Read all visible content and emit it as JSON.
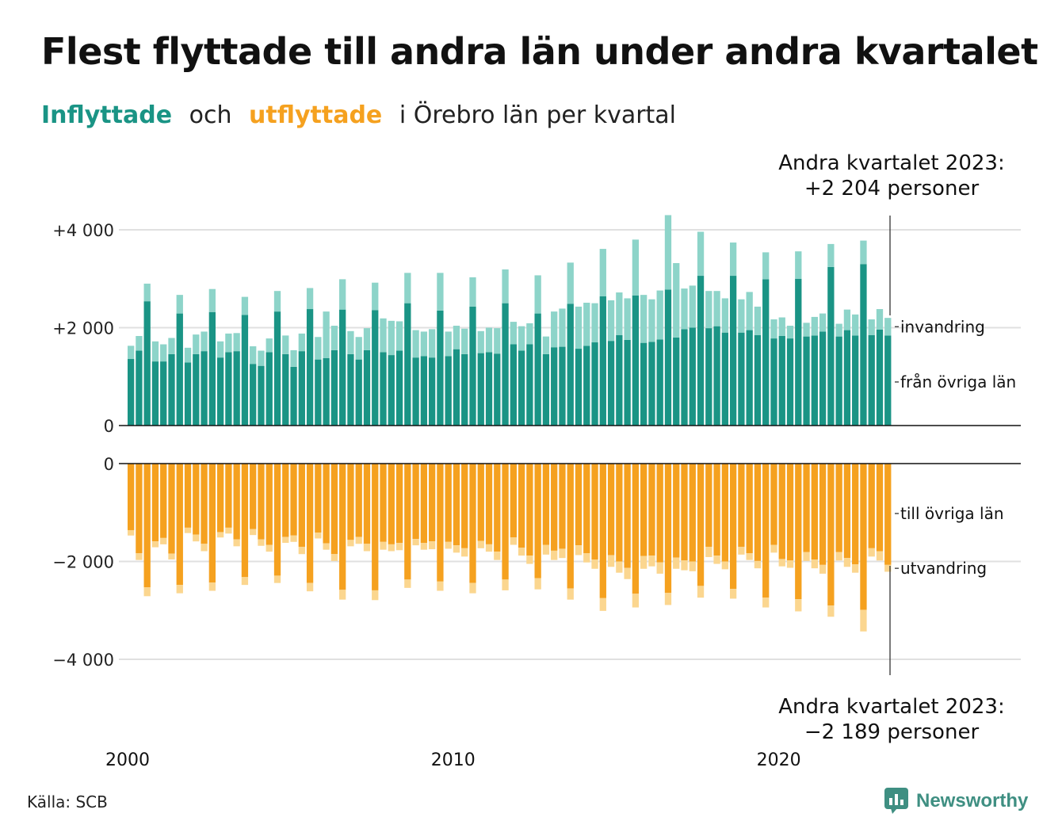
{
  "title": "Flest flyttade till andra län under andra kvartalet",
  "subtitle": {
    "part1": "Inflyttade",
    "part2": "och",
    "part3": "utflyttade",
    "part4": "i Örebro län per kvartal"
  },
  "annotation_top": {
    "line1": "Andra kvartalet 2023:",
    "line2": "+2 204 personer"
  },
  "annotation_bottom": {
    "line1": "Andra kvartalet 2023:",
    "line2": "−2 189 personer"
  },
  "source": "Källa: SCB",
  "logo": {
    "text": "Newsworthy",
    "icon": "bar-chart-speech-icon"
  },
  "colors": {
    "in_main": "#1a9485",
    "in_light": "#8dd4c9",
    "out_main": "#f5a11f",
    "out_light": "#fbd68f"
  },
  "chart_data": {
    "type": "bar",
    "x_start_year": 2000,
    "x_ticks": [
      "2000",
      "2010",
      "2020"
    ],
    "top_panel": {
      "y_ticks": [
        {
          "value": 4000,
          "label": "+4 000"
        },
        {
          "value": 2000,
          "label": "+2 000"
        },
        {
          "value": 0,
          "label": "0"
        }
      ],
      "series": [
        {
          "name": "från övriga län",
          "values": [
            1360,
            1530,
            2540,
            1310,
            1310,
            1460,
            2290,
            1290,
            1460,
            1520,
            2320,
            1390,
            1500,
            1520,
            2260,
            1260,
            1220,
            1500,
            2330,
            1460,
            1200,
            1520,
            2380,
            1350,
            1380,
            1540,
            2370,
            1460,
            1350,
            1540,
            2360,
            1500,
            1440,
            1530,
            2500,
            1390,
            1420,
            1390,
            2350,
            1420,
            1560,
            1460,
            2430,
            1480,
            1500,
            1470,
            2500,
            1660,
            1530,
            1660,
            2290,
            1460,
            1600,
            1610,
            2490,
            1570,
            1630,
            1700,
            2640,
            1730,
            1850,
            1750,
            2660,
            1690,
            1710,
            1760,
            2780,
            1800,
            1970,
            2000,
            3060,
            1990,
            2030,
            1900,
            3060,
            1900,
            1950,
            1850,
            2990,
            1780,
            1830,
            1780,
            3000,
            1820,
            1840,
            1920,
            3240,
            1820,
            1950,
            1840,
            3300,
            1850,
            1960,
            1840
          ]
        },
        {
          "name": "invandring",
          "values": [
            270,
            300,
            360,
            410,
            350,
            330,
            380,
            300,
            400,
            400,
            470,
            330,
            380,
            370,
            370,
            360,
            310,
            280,
            420,
            380,
            340,
            360,
            430,
            460,
            950,
            500,
            620,
            470,
            460,
            450,
            560,
            690,
            700,
            600,
            620,
            560,
            500,
            580,
            770,
            500,
            480,
            520,
            600,
            450,
            500,
            520,
            690,
            460,
            500,
            430,
            780,
            360,
            730,
            780,
            840,
            860,
            880,
            800,
            970,
            830,
            870,
            850,
            1140,
            980,
            870,
            1000,
            1520,
            1520,
            830,
            860,
            900,
            760,
            720,
            700,
            680,
            680,
            780,
            580,
            550,
            390,
            380,
            260,
            560,
            280,
            380,
            370,
            470,
            260,
            420,
            430,
            480,
            320,
            420,
            360
          ]
        }
      ],
      "labels": [
        "invandring",
        "från övriga län"
      ],
      "ylim": [
        0,
        4400
      ]
    },
    "bottom_panel": {
      "y_ticks": [
        {
          "value": 0,
          "label": "0"
        },
        {
          "value": -2000,
          "label": "−2 000"
        },
        {
          "value": -4000,
          "label": "−4 000"
        }
      ],
      "series": [
        {
          "name": "till övriga län",
          "values": [
            -1360,
            -1830,
            -2530,
            -1590,
            -1520,
            -1840,
            -2480,
            -1310,
            -1450,
            -1640,
            -2430,
            -1400,
            -1310,
            -1550,
            -2320,
            -1340,
            -1550,
            -1660,
            -2290,
            -1500,
            -1470,
            -1700,
            -2440,
            -1410,
            -1630,
            -1850,
            -2580,
            -1560,
            -1500,
            -1640,
            -2590,
            -1600,
            -1650,
            -1620,
            -2370,
            -1540,
            -1620,
            -1590,
            -2410,
            -1600,
            -1670,
            -1730,
            -2440,
            -1580,
            -1650,
            -1800,
            -2370,
            -1510,
            -1720,
            -1880,
            -2340,
            -1660,
            -1780,
            -1740,
            -2550,
            -1670,
            -1830,
            -1960,
            -2750,
            -1870,
            -2000,
            -2130,
            -2660,
            -1890,
            -1880,
            -2020,
            -2640,
            -1920,
            -1980,
            -2000,
            -2500,
            -1700,
            -1880,
            -2000,
            -2560,
            -1700,
            -1830,
            -1990,
            -2740,
            -1660,
            -1950,
            -1980,
            -2770,
            -1810,
            -1960,
            -2070,
            -2900,
            -1810,
            -1930,
            -2060,
            -2990,
            -1730,
            -1790,
            -2070
          ]
        },
        {
          "name": "utvandring",
          "values": [
            -110,
            -140,
            -180,
            -120,
            -130,
            -120,
            -170,
            -110,
            -140,
            -150,
            -170,
            -110,
            -120,
            -140,
            -160,
            -120,
            -130,
            -140,
            -150,
            -120,
            -130,
            -150,
            -170,
            -120,
            -130,
            -140,
            -200,
            -130,
            -140,
            -150,
            -200,
            -160,
            -140,
            -150,
            -170,
            -130,
            -140,
            -160,
            -190,
            -140,
            -150,
            -170,
            -210,
            -150,
            -150,
            -170,
            -220,
            -150,
            -160,
            -170,
            -230,
            -200,
            -190,
            -190,
            -230,
            -200,
            -190,
            -190,
            -260,
            -240,
            -230,
            -230,
            -280,
            -260,
            -220,
            -230,
            -250,
            -230,
            -200,
            -200,
            -240,
            -210,
            -170,
            -160,
            -200,
            -160,
            -140,
            -150,
            -200,
            -160,
            -150,
            -150,
            -250,
            -180,
            -180,
            -180,
            -230,
            -170,
            -180,
            -170,
            -440,
            -170,
            -190,
            -140
          ]
        }
      ],
      "labels": [
        "till övriga län",
        "utvandring"
      ],
      "ylim": [
        -4400,
        0
      ]
    }
  }
}
